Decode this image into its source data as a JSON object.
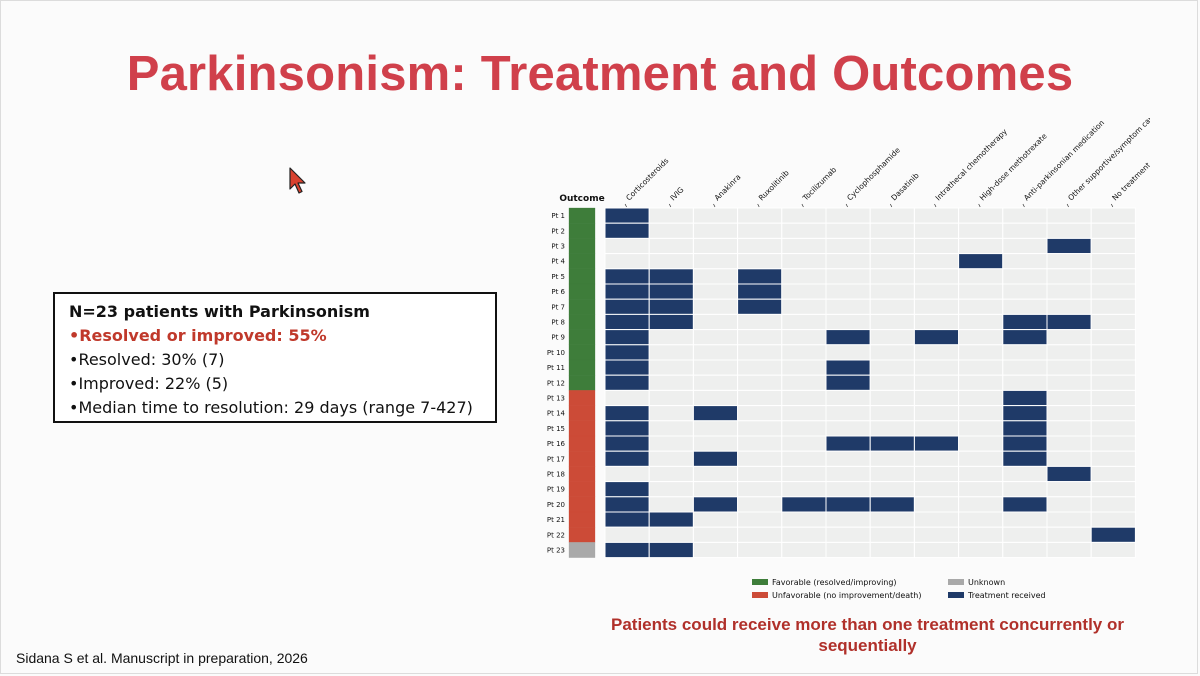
{
  "slide": {
    "title": "Parkinsonism: Treatment and Outcomes",
    "citation": "Sidana S et al. Manuscript in preparation, 2026",
    "footnote": "Patients could receive more than one treatment concurrently or sequentially"
  },
  "summary": {
    "heading": "N=23 patients with Parkinsonism",
    "highlight": "•Resolved or improved: 55%",
    "items": [
      "•Resolved: 30% (7)",
      "•Improved: 22% (5)",
      "•Median time to resolution: 29 days (range 7-427)"
    ]
  },
  "cursor": {
    "icon": "mouse-pointer-icon",
    "color": "#d9412e"
  },
  "chart_data": {
    "type": "heatmap",
    "title": "",
    "outcome_label": "Outcome",
    "treatments": [
      "Corticosteroids",
      "IVIG",
      "Anakinra",
      "Ruxolitinib",
      "Tocilizumab",
      "Cyclophosphamide",
      "Dasatinib",
      "Intrathecal chemotherapy",
      "High-dose methotrexate",
      "Anti-parkinsonian medication",
      "Other supportive/symptom care",
      "No treatment documented"
    ],
    "patients": [
      {
        "label": "Pt 1",
        "outcome": "favorable",
        "treated": [
          0
        ]
      },
      {
        "label": "Pt 2",
        "outcome": "favorable",
        "treated": [
          0
        ]
      },
      {
        "label": "Pt 3",
        "outcome": "favorable",
        "treated": [
          10
        ]
      },
      {
        "label": "Pt 4",
        "outcome": "favorable",
        "treated": [
          8
        ]
      },
      {
        "label": "Pt 5",
        "outcome": "favorable",
        "treated": [
          0,
          1,
          3
        ]
      },
      {
        "label": "Pt 6",
        "outcome": "favorable",
        "treated": [
          0,
          1,
          3
        ]
      },
      {
        "label": "Pt 7",
        "outcome": "favorable",
        "treated": [
          0,
          1,
          3
        ]
      },
      {
        "label": "Pt 8",
        "outcome": "favorable",
        "treated": [
          0,
          1,
          9,
          10
        ]
      },
      {
        "label": "Pt 9",
        "outcome": "favorable",
        "treated": [
          0,
          5,
          7,
          9
        ]
      },
      {
        "label": "Pt 10",
        "outcome": "favorable",
        "treated": [
          0
        ]
      },
      {
        "label": "Pt 11",
        "outcome": "favorable",
        "treated": [
          0,
          5
        ]
      },
      {
        "label": "Pt 12",
        "outcome": "favorable",
        "treated": [
          0,
          5
        ]
      },
      {
        "label": "Pt 13",
        "outcome": "unfavorable",
        "treated": [
          9
        ]
      },
      {
        "label": "Pt 14",
        "outcome": "unfavorable",
        "treated": [
          0,
          2,
          9
        ]
      },
      {
        "label": "Pt 15",
        "outcome": "unfavorable",
        "treated": [
          0,
          9
        ]
      },
      {
        "label": "Pt 16",
        "outcome": "unfavorable",
        "treated": [
          0,
          5,
          6,
          7,
          9
        ]
      },
      {
        "label": "Pt 17",
        "outcome": "unfavorable",
        "treated": [
          0,
          2,
          9
        ]
      },
      {
        "label": "Pt 18",
        "outcome": "unfavorable",
        "treated": [
          10
        ]
      },
      {
        "label": "Pt 19",
        "outcome": "unfavorable",
        "treated": [
          0
        ]
      },
      {
        "label": "Pt 20",
        "outcome": "unfavorable",
        "treated": [
          0,
          2,
          4,
          5,
          6,
          9
        ]
      },
      {
        "label": "Pt 21",
        "outcome": "unfavorable",
        "treated": [
          0,
          1
        ]
      },
      {
        "label": "Pt 22",
        "outcome": "unfavorable",
        "treated": [
          11
        ]
      },
      {
        "label": "Pt 23",
        "outcome": "unknown",
        "treated": [
          0,
          1
        ]
      }
    ],
    "legend": [
      {
        "key": "favorable",
        "label": "Favorable (resolved/improving)",
        "color": "#3e7d3a"
      },
      {
        "key": "unknown",
        "label": "Unknown",
        "color": "#a9a9a9"
      },
      {
        "key": "unfavorable",
        "label": "Unfavorable (no improvement/death)",
        "color": "#cc4b37"
      },
      {
        "key": "treated",
        "label": "Treatment received",
        "color": "#1f3a68"
      }
    ],
    "colors": {
      "favorable": "#3e7d3a",
      "unfavorable": "#cc4b37",
      "unknown": "#a9a9a9",
      "treated": "#1f3a68",
      "empty": "#eeefee",
      "grid": "#ffffff"
    },
    "legend_position": "bottom"
  }
}
